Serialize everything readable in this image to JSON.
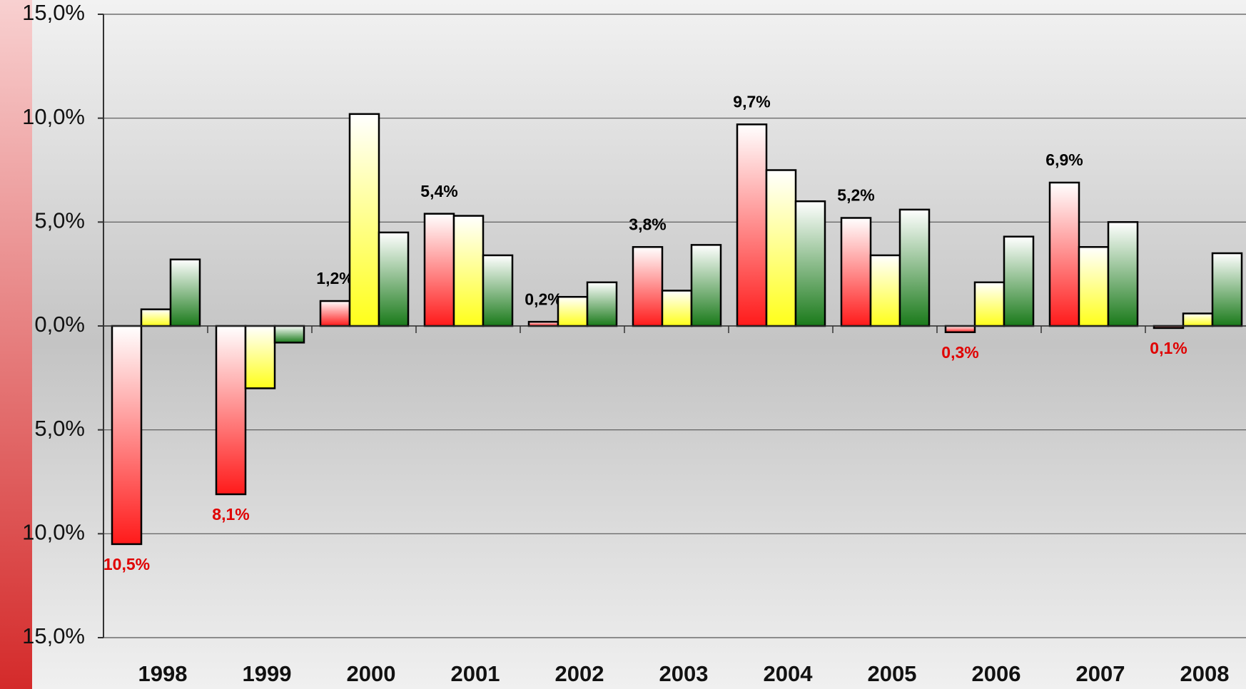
{
  "chart_data": {
    "type": "bar",
    "categories": [
      "1998",
      "1999",
      "2000",
      "2001",
      "2002",
      "2003",
      "2004",
      "2005",
      "2006",
      "2007",
      "2008"
    ],
    "series": [
      {
        "color": "#ff1a1a",
        "values": [
          -10.5,
          -8.1,
          1.2,
          5.4,
          0.2,
          3.8,
          9.7,
          5.2,
          -0.3,
          6.9,
          -0.1
        ],
        "value_labels": [
          "10,5%",
          "8,1%",
          "1,2%",
          "5,4%",
          "0,2%",
          "3,8%",
          "9,7%",
          "5,2%",
          "0,3%",
          "6,9%",
          "0,1%"
        ]
      },
      {
        "color": "#ffff1a",
        "values": [
          0.8,
          -3.0,
          10.2,
          5.3,
          1.4,
          1.7,
          7.5,
          3.4,
          2.1,
          3.8,
          0.6
        ]
      },
      {
        "color": "#1a7a1a",
        "values": [
          3.2,
          -0.8,
          4.5,
          3.4,
          2.1,
          3.9,
          6.0,
          5.6,
          4.3,
          5.0,
          3.5
        ]
      }
    ],
    "ylim": [
      -15,
      15
    ],
    "yticks": [
      {
        "value": 15,
        "label": "15,0%"
      },
      {
        "value": 10,
        "label": "10,0%"
      },
      {
        "value": 5,
        "label": "5,0%"
      },
      {
        "value": 0,
        "label": "0,0%"
      },
      {
        "value": -5,
        "label": "5,0%"
      },
      {
        "value": -10,
        "label": "10,0%"
      },
      {
        "value": -15,
        "label": "15,0%"
      }
    ],
    "grid": true
  }
}
